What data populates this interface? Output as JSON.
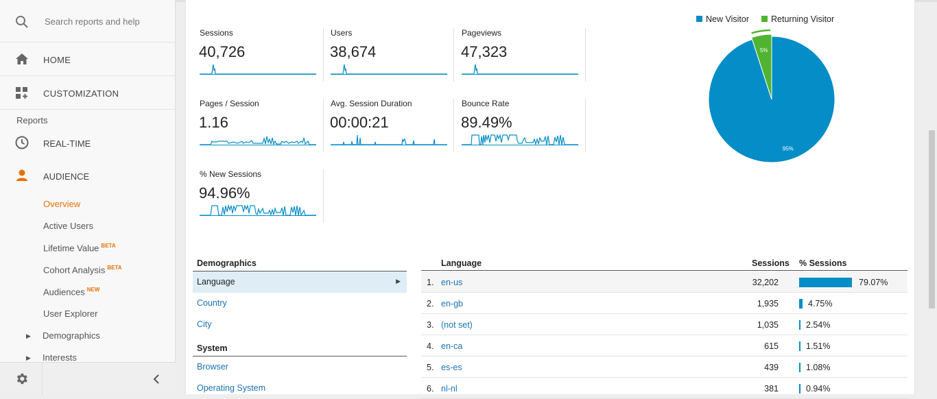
{
  "search": {
    "placeholder": "Search reports and help"
  },
  "nav": {
    "home": "HOME",
    "customization": "CUSTOMIZATION",
    "reports_header": "Reports",
    "realtime": "REAL-TIME",
    "audience": "AUDIENCE",
    "audience_sub": [
      {
        "label": "Overview",
        "badge": ""
      },
      {
        "label": "Active Users",
        "badge": ""
      },
      {
        "label": "Lifetime Value",
        "badge": "BETA"
      },
      {
        "label": "Cohort Analysis",
        "badge": "BETA"
      },
      {
        "label": "Audiences",
        "badge": "NEW"
      },
      {
        "label": "User Explorer",
        "badge": ""
      },
      {
        "label": "Demographics",
        "badge": ""
      },
      {
        "label": "Interests",
        "badge": ""
      }
    ]
  },
  "metrics": [
    {
      "label": "Sessions",
      "value": "40,726"
    },
    {
      "label": "Users",
      "value": "38,674"
    },
    {
      "label": "Pageviews",
      "value": "47,323"
    },
    {
      "label": "Pages / Session",
      "value": "1.16"
    },
    {
      "label": "Avg. Session Duration",
      "value": "00:00:21"
    },
    {
      "label": "Bounce Rate",
      "value": "89.49%"
    },
    {
      "label": "% New Sessions",
      "value": "94.96%"
    }
  ],
  "pie": {
    "legend": [
      {
        "name": "New Visitor",
        "color": "#058dc7"
      },
      {
        "name": "Returning Visitor",
        "color": "#50b432"
      }
    ],
    "slices": [
      {
        "name": "New Visitor",
        "value": 95,
        "label": "95%"
      },
      {
        "name": "Returning Visitor",
        "value": 5,
        "label": "5%"
      }
    ]
  },
  "demographics": {
    "header": "Demographics",
    "items": [
      "Language",
      "Country",
      "City"
    ],
    "system_header": "System",
    "system_items": [
      "Browser",
      "Operating System"
    ]
  },
  "table": {
    "col_language": "Language",
    "col_sessions": "Sessions",
    "col_pct": "% Sessions",
    "rows": [
      {
        "num": "1.",
        "lang": "en-us",
        "sessions": "32,202",
        "pct": "79.07%",
        "share": 79.07
      },
      {
        "num": "2.",
        "lang": "en-gb",
        "sessions": "1,935",
        "pct": "4.75%",
        "share": 4.75
      },
      {
        "num": "3.",
        "lang": "(not set)",
        "sessions": "1,035",
        "pct": "2.54%",
        "share": 2.54
      },
      {
        "num": "4.",
        "lang": "en-ca",
        "sessions": "615",
        "pct": "1.51%",
        "share": 1.51
      },
      {
        "num": "5.",
        "lang": "es-es",
        "sessions": "439",
        "pct": "1.08%",
        "share": 1.08
      },
      {
        "num": "6.",
        "lang": "nl-nl",
        "sessions": "381",
        "pct": "0.94%",
        "share": 0.94
      }
    ]
  }
}
